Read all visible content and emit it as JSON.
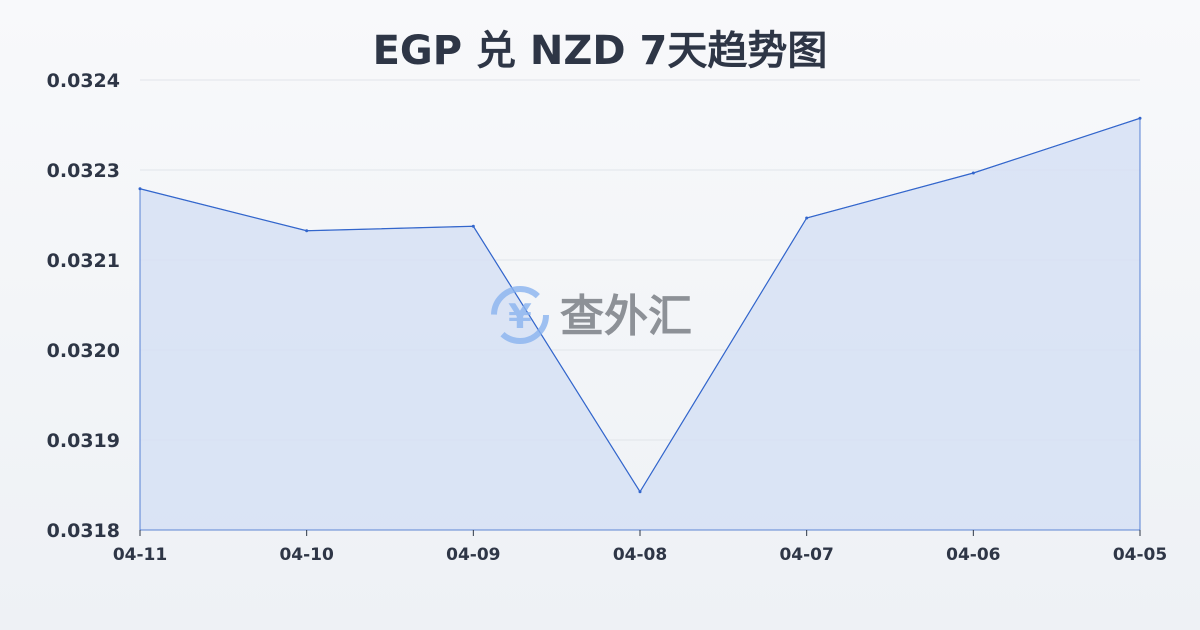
{
  "chart_data": {
    "type": "area",
    "title": "EGP 兑 NZD 7天趋势图",
    "categories": [
      "04-11",
      "04-10",
      "04-09",
      "04-08",
      "04-07",
      "04-06",
      "04-05"
    ],
    "values": [
      0.032255,
      0.032199,
      0.032205,
      0.031851,
      0.032216,
      0.032276,
      0.032349
    ],
    "ylim": [
      0.0318,
      0.0324
    ],
    "yticks": [
      "0.0318",
      "0.0319",
      "0.0320",
      "0.0321",
      "0.0323",
      "0.0324"
    ],
    "grid": true,
    "colors": {
      "line": "#3366cc",
      "fill": "#d6e1f5"
    }
  },
  "watermark": "查外汇"
}
